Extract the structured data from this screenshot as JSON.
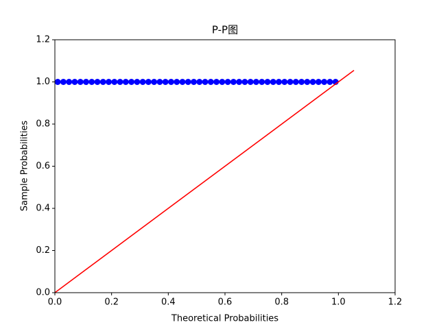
{
  "chart_data": {
    "type": "scatter",
    "title": "P-P图",
    "xlabel": "Theoretical Probabilities",
    "ylabel": "Sample Probabilities",
    "xlim": [
      0,
      1.2
    ],
    "ylim": [
      0,
      1.2
    ],
    "xticks": [
      {
        "value": 0,
        "label": "0.0"
      },
      0.2,
      0.4,
      0.6,
      0.8,
      {
        "value": 1,
        "label": "1.0"
      },
      1.2
    ],
    "yticks": [
      {
        "value": 0,
        "label": "0.0"
      },
      0.2,
      0.4,
      0.6,
      0.8,
      {
        "value": 1,
        "label": "1.0"
      },
      1.2
    ],
    "series": [
      {
        "type": "scatter",
        "color": "#0000ff",
        "x": [
          0.01,
          0.03,
          0.05,
          0.07,
          0.09,
          0.11,
          0.13,
          0.15,
          0.17,
          0.19,
          0.21,
          0.23,
          0.25,
          0.27,
          0.29,
          0.31,
          0.33,
          0.35,
          0.37,
          0.39,
          0.41,
          0.43,
          0.45,
          0.47,
          0.49,
          0.51,
          0.53,
          0.55,
          0.57,
          0.59,
          0.61,
          0.63,
          0.65,
          0.67,
          0.69,
          0.71,
          0.73,
          0.75,
          0.77,
          0.79,
          0.81,
          0.83,
          0.85,
          0.87,
          0.89,
          0.91,
          0.93,
          0.95,
          0.97,
          0.99
        ],
        "values": [
          1,
          1,
          1,
          1,
          1,
          1,
          1,
          1,
          1,
          1,
          1,
          1,
          1,
          1,
          1,
          1,
          1,
          1,
          1,
          1,
          1,
          1,
          1,
          1,
          1,
          1,
          1,
          1,
          1,
          1,
          1,
          1,
          1,
          1,
          1,
          1,
          1,
          1,
          1,
          1,
          1,
          1,
          1,
          1,
          1,
          1,
          1,
          1,
          1,
          1
        ]
      },
      {
        "type": "line",
        "color": "#ff0000",
        "x": [
          0,
          1.055
        ],
        "values": [
          0,
          1.055
        ]
      }
    ]
  }
}
